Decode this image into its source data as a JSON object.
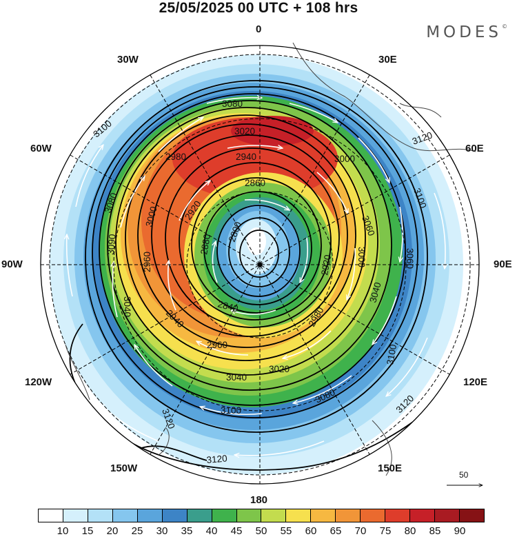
{
  "header": {
    "title": "25/05/2025  00 UTC  + 108 hrs",
    "brand": "MODES",
    "brand_mark": "©"
  },
  "longitude_labels": {
    "top": "0",
    "bottom": "180",
    "left": "90W",
    "right": "90E",
    "upper_left_1": "30W",
    "upper_left_2": "60W",
    "upper_right_1": "30E",
    "upper_right_2": "60E",
    "lower_left_1": "120W",
    "lower_left_2": "150W",
    "lower_right_1": "120E",
    "lower_right_2": "150E"
  },
  "contour_labels": [
    "3080",
    "3020",
    "2940",
    "2980",
    "3100",
    "2860",
    "3080",
    "2920",
    "3000",
    "2800",
    "2880",
    "3090",
    "2960",
    "2840",
    "3040",
    "2940",
    "3060",
    "3100",
    "3000",
    "3120",
    "3040",
    "3000",
    "2920",
    "2980",
    "2960",
    "3020",
    "3040",
    "3080",
    "3100",
    "3120",
    "3060",
    "3120",
    "3100",
    "3120"
  ],
  "vector_reference": "50",
  "colorbar": {
    "ticks": [
      "10",
      "15",
      "20",
      "25",
      "30",
      "35",
      "40",
      "45",
      "50",
      "55",
      "60",
      "65",
      "70",
      "75",
      "80",
      "85",
      "90"
    ],
    "colors": [
      "#ffffff",
      "#d5f0fc",
      "#b3e1f7",
      "#85c6ee",
      "#5aa5dc",
      "#3d84c6",
      "#3a9e8c",
      "#3fb24c",
      "#7ec54a",
      "#c3dc4e",
      "#f6e04e",
      "#f6b841",
      "#f19538",
      "#ea6a2f",
      "#de3d2b",
      "#c62028",
      "#a91b22",
      "#861215"
    ]
  }
}
